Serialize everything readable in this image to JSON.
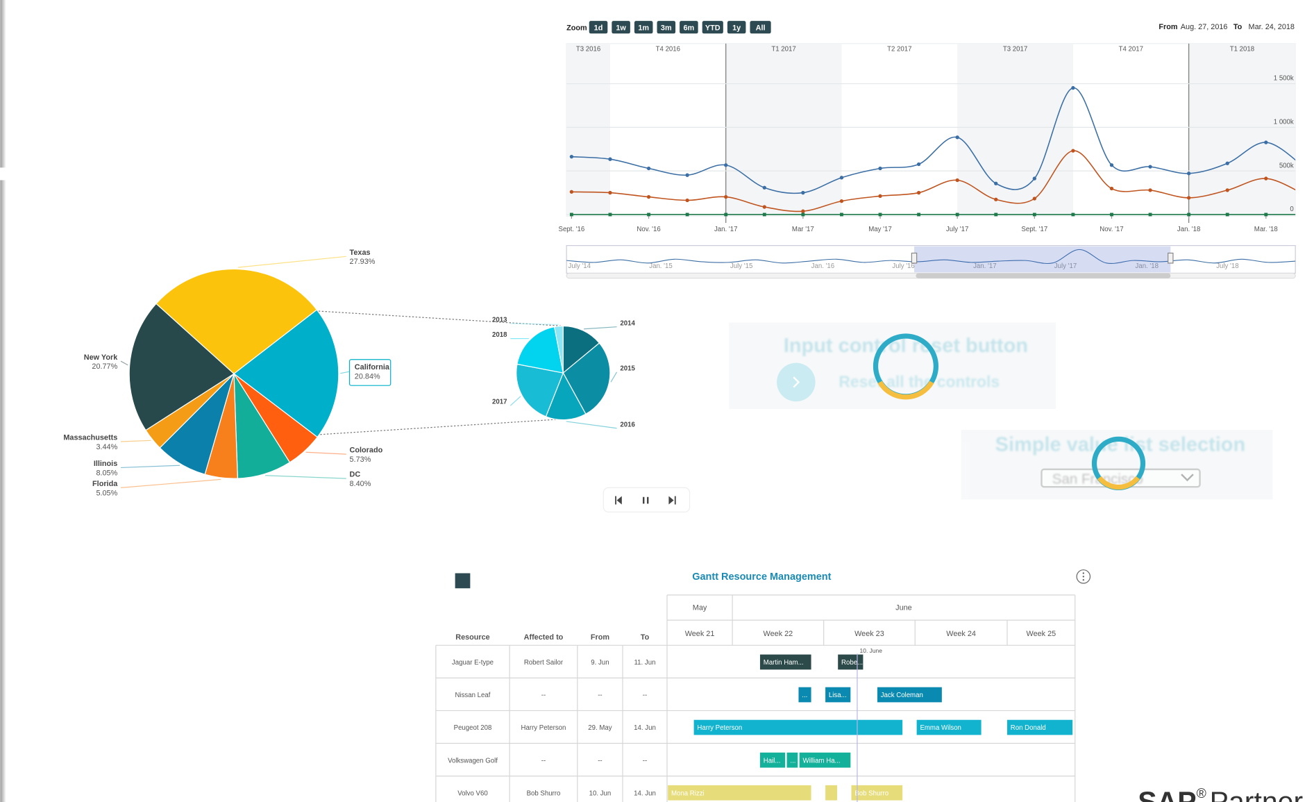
{
  "zoom": {
    "label": "Zoom",
    "buttons": [
      "1d",
      "1w",
      "1m",
      "3m",
      "6m",
      "YTD",
      "1y",
      "All"
    ]
  },
  "range": {
    "from_label": "From",
    "from": "Aug. 27, 2016",
    "to_label": "To",
    "to": "Mar. 24, 2018"
  },
  "chart_data": [
    {
      "type": "line",
      "bands": [
        "T3 2016",
        "T4 2016",
        "T1 2017",
        "T2 2017",
        "T3 2017",
        "T4 2017",
        "T1 2018"
      ],
      "categories": [
        "Sept. '16",
        null,
        "Nov. '16",
        null,
        "Jan. '17",
        null,
        "Mar '17",
        null,
        "May '17",
        null,
        "July '17",
        null,
        "Sept. '17",
        null,
        "Nov. '17",
        null,
        "Jan. '18",
        null,
        "Mar. '18",
        null
      ],
      "series": [
        {
          "color": "#3a6ea5",
          "marker": "circle",
          "values": [
            663000,
            635000,
            529000,
            452000,
            567000,
            308000,
            250000,
            423000,
            529000,
            577000,
            885000,
            356000,
            413000,
            1452000,
            567000,
            548000,
            471000,
            587000,
            827000,
            540000
          ]
        },
        {
          "color": "#c0541f",
          "marker": "circle",
          "values": [
            260000,
            250000,
            202000,
            163000,
            202000,
            87000,
            38000,
            154000,
            212000,
            250000,
            394000,
            173000,
            183000,
            731000,
            298000,
            279000,
            192000,
            279000,
            413000,
            230000
          ]
        },
        {
          "color": "#1e7a4a",
          "marker": "square",
          "values": [
            0,
            0,
            0,
            0,
            0,
            0,
            0,
            0,
            0,
            0,
            0,
            0,
            0,
            0,
            0,
            0,
            0,
            0,
            0,
            0
          ]
        }
      ],
      "ylim": [
        0,
        1960000
      ],
      "yticks": [
        0,
        {
          "value": 500000,
          "label": "500k"
        },
        {
          "value": 1000000,
          "label": "1 000k"
        },
        {
          "value": 1500000,
          "label": "1 500k"
        }
      ],
      "grid": true,
      "navigator": {
        "categories": [
          "July '14",
          "Jan. '15",
          "July '15",
          "Jan. '16",
          "July '16",
          "Jan. '17",
          "July '17",
          "Jan. '18",
          "July '18"
        ],
        "values": [
          600000,
          450000,
          650000,
          400000,
          700000,
          500000,
          450000,
          650000,
          400000,
          550000,
          700000,
          450000,
          600000,
          500000,
          650000,
          450000,
          550000,
          600000,
          400000,
          1452000,
          400000,
          600000,
          500000,
          650000,
          400000,
          700000,
          450000,
          550000
        ],
        "color": "#3a6ea5"
      }
    },
    {
      "type": "pie",
      "categories": [
        "Texas",
        "California",
        "Colorado",
        "DC",
        "Florida",
        "Illinois",
        "Massachusetts",
        "New York"
      ],
      "values": [
        27.93,
        20.84,
        5.73,
        8.4,
        5.05,
        8.05,
        3.44,
        20.77
      ],
      "value_labels": [
        "27.93%",
        "20.84%",
        "5.73%",
        "8.40%",
        "5.05%",
        "8.05%",
        "3.44%",
        "20.77%"
      ],
      "colors": [
        "#fcc30c",
        "#00b0ca",
        "#ff5f0f",
        "#13ae9a",
        "#f7801d",
        "#0a80aa",
        "#f49c15",
        "#27494b"
      ]
    },
    {
      "type": "pie",
      "categories": [
        "2014",
        "2015",
        "2016",
        "2017",
        "2018",
        "2013"
      ],
      "values": [
        14,
        28,
        14,
        22,
        19,
        3
      ],
      "colors": [
        "#0c6f80",
        "#0b8ea3",
        "#08a6bc",
        "#18bcd4",
        "#02d3ef",
        "#8ae6f4"
      ]
    }
  ],
  "widgets": {
    "reset_title": "Input control reset button",
    "reset_button": "Reset all the controls",
    "select_title": "Simple value list selection",
    "select_value": "San Francisco"
  },
  "gantt": {
    "title": "Gantt Resource Management",
    "columns": [
      "Resource",
      "Affected to",
      "From",
      "To"
    ],
    "months": [
      "May",
      "June"
    ],
    "weeks": [
      "Week 21",
      "Week 22",
      "Week 23",
      "Week 24",
      "Week 25"
    ],
    "marker": "10. June",
    "rows": [
      {
        "cells": [
          "Jaguar E-type",
          "Robert Sailor",
          "9. Jun",
          "11. Jun"
        ],
        "bars": [
          "Martin Ham...",
          "Robe..."
        ]
      },
      {
        "cells": [
          "Nissan Leaf",
          "--",
          "--",
          "--"
        ],
        "bars": [
          "...",
          "Lisa...",
          "Jack Coleman"
        ]
      },
      {
        "cells": [
          "Peugeot 208",
          "Harry Peterson",
          "29. May",
          "14. Jun"
        ],
        "bars": [
          "Harry Peterson",
          "Emma Wilson",
          "Ron Donald"
        ]
      },
      {
        "cells": [
          "Volkswagen Golf",
          "--",
          "--",
          "--"
        ],
        "bars": [
          "Hail...",
          "...",
          "William Ha..."
        ]
      },
      {
        "cells": [
          "Volvo V60",
          "Bob Shurro",
          "10. Jun",
          "14. Jun"
        ],
        "bars": [
          "Mona Rizzi",
          null,
          "Bob Shurro"
        ]
      }
    ]
  },
  "footer": {
    "brand": "SAP",
    "mark": "®",
    "text": "Partner"
  }
}
